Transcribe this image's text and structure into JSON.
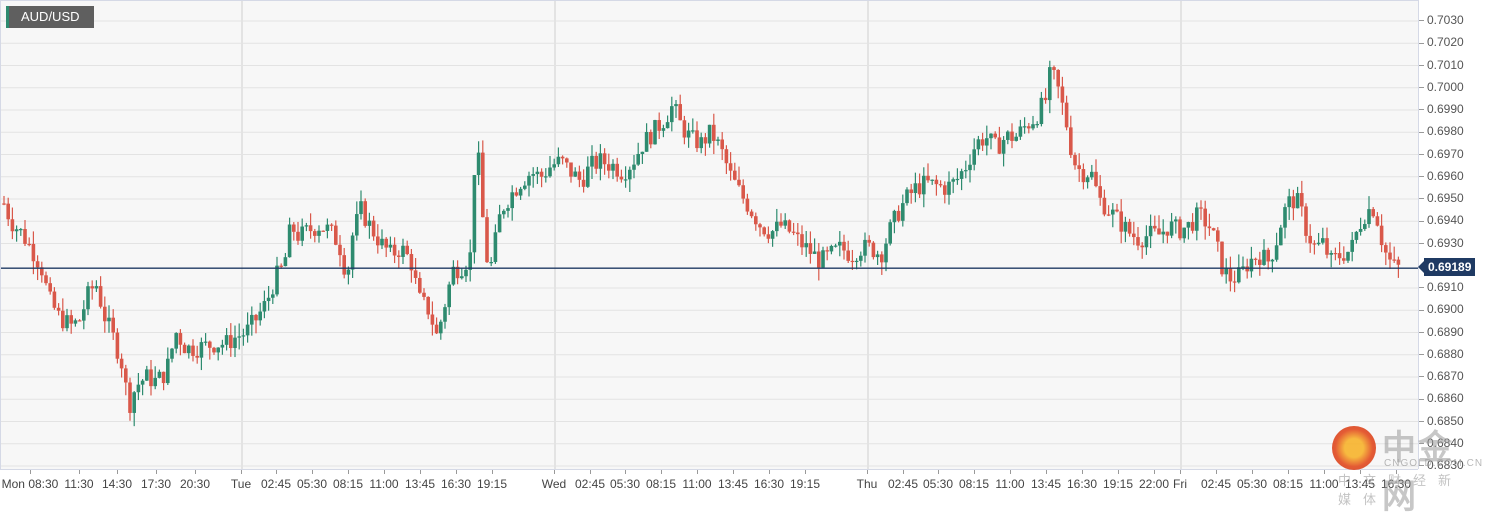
{
  "window": {
    "symbol": "AUD/USD"
  },
  "current_price": {
    "value": "0.69189",
    "numeric": 0.69189
  },
  "colors": {
    "up": "#2e8b6f",
    "down": "#d9584a",
    "price_line": "#1f3a63",
    "grid": "#e3e3e3",
    "background": "#f7f7f7"
  },
  "watermark": {
    "brand": "中金网",
    "sub": "CNGOLD.COM.CN",
    "tagline": "中文财经新媒体"
  },
  "chart_data": {
    "type": "candlestick",
    "title": "AUD/USD",
    "xlabel": "",
    "ylabel": "",
    "ylim": [
      0.683,
      0.7035
    ],
    "grid": true,
    "legend_position": "none",
    "y_ticks": [
      "0.7030",
      "0.7020",
      "0.7010",
      "0.7000",
      "0.6990",
      "0.6980",
      "0.6970",
      "0.6960",
      "0.6950",
      "0.6940",
      "0.6930",
      "0.6910",
      "0.6900",
      "0.6890",
      "0.6880",
      "0.6870",
      "0.6860",
      "0.6850",
      "0.6840",
      "0.6830"
    ],
    "x_ticks": [
      {
        "label": "Mon 08:30",
        "x": 30
      },
      {
        "label": "11:30",
        "x": 79
      },
      {
        "label": "14:30",
        "x": 117
      },
      {
        "label": "17:30",
        "x": 156
      },
      {
        "label": "20:30",
        "x": 195
      },
      {
        "label": "Tue",
        "x": 241
      },
      {
        "label": "02:45",
        "x": 276
      },
      {
        "label": "05:30",
        "x": 312
      },
      {
        "label": "08:15",
        "x": 348
      },
      {
        "label": "11:00",
        "x": 384
      },
      {
        "label": "13:45",
        "x": 420
      },
      {
        "label": "16:30",
        "x": 456
      },
      {
        "label": "19:15",
        "x": 492
      },
      {
        "label": "Wed",
        "x": 554
      },
      {
        "label": "02:45",
        "x": 590
      },
      {
        "label": "05:30",
        "x": 625
      },
      {
        "label": "08:15",
        "x": 661
      },
      {
        "label": "11:00",
        "x": 697
      },
      {
        "label": "13:45",
        "x": 733
      },
      {
        "label": "16:30",
        "x": 769
      },
      {
        "label": "19:15",
        "x": 805
      },
      {
        "label": "Thu",
        "x": 867
      },
      {
        "label": "02:45",
        "x": 903
      },
      {
        "label": "05:30",
        "x": 938
      },
      {
        "label": "08:15",
        "x": 974
      },
      {
        "label": "11:00",
        "x": 1010
      },
      {
        "label": "13:45",
        "x": 1046
      },
      {
        "label": "16:30",
        "x": 1082
      },
      {
        "label": "19:15",
        "x": 1118
      },
      {
        "label": "22:00",
        "x": 1154
      },
      {
        "label": "Fri",
        "x": 1180
      },
      {
        "label": "02:45",
        "x": 1216
      },
      {
        "label": "05:30",
        "x": 1252
      },
      {
        "label": "08:15",
        "x": 1288
      },
      {
        "label": "11:00",
        "x": 1324
      },
      {
        "label": "13:45",
        "x": 1360
      },
      {
        "label": "16:30",
        "x": 1396
      }
    ],
    "day_separators_x": [
      241,
      554,
      867,
      1180
    ],
    "price_path": [
      [
        3,
        0.6948
      ],
      [
        10,
        0.694
      ],
      [
        20,
        0.6935
      ],
      [
        30,
        0.6928
      ],
      [
        40,
        0.692
      ],
      [
        48,
        0.6905
      ],
      [
        58,
        0.6897
      ],
      [
        70,
        0.6893
      ],
      [
        78,
        0.6895
      ],
      [
        88,
        0.6908
      ],
      [
        95,
        0.6912
      ],
      [
        103,
        0.6898
      ],
      [
        112,
        0.6888
      ],
      [
        120,
        0.6878
      ],
      [
        128,
        0.6857
      ],
      [
        135,
        0.6866
      ],
      [
        145,
        0.687
      ],
      [
        155,
        0.6868
      ],
      [
        165,
        0.6872
      ],
      [
        175,
        0.689
      ],
      [
        185,
        0.6883
      ],
      [
        195,
        0.6883
      ],
      [
        205,
        0.6884
      ],
      [
        215,
        0.6885
      ],
      [
        225,
        0.6885
      ],
      [
        235,
        0.6888
      ],
      [
        245,
        0.689
      ],
      [
        255,
        0.6896
      ],
      [
        265,
        0.6903
      ],
      [
        275,
        0.6915
      ],
      [
        283,
        0.692
      ],
      [
        290,
        0.6938
      ],
      [
        298,
        0.6933
      ],
      [
        308,
        0.6936
      ],
      [
        318,
        0.6938
      ],
      [
        328,
        0.6936
      ],
      [
        338,
        0.693
      ],
      [
        346,
        0.6915
      ],
      [
        352,
        0.6935
      ],
      [
        360,
        0.6945
      ],
      [
        370,
        0.6937
      ],
      [
        380,
        0.693
      ],
      [
        390,
        0.6925
      ],
      [
        400,
        0.6928
      ],
      [
        410,
        0.6922
      ],
      [
        418,
        0.6905
      ],
      [
        428,
        0.69
      ],
      [
        436,
        0.6888
      ],
      [
        445,
        0.6905
      ],
      [
        452,
        0.6918
      ],
      [
        462,
        0.692
      ],
      [
        470,
        0.6925
      ],
      [
        475,
        0.6982
      ],
      [
        482,
        0.694
      ],
      [
        488,
        0.6915
      ],
      [
        494,
        0.693
      ],
      [
        500,
        0.6945
      ],
      [
        510,
        0.6952
      ],
      [
        520,
        0.6958
      ],
      [
        530,
        0.6962
      ],
      [
        540,
        0.696
      ],
      [
        550,
        0.6965
      ],
      [
        560,
        0.6967
      ],
      [
        570,
        0.6962
      ],
      [
        580,
        0.6958
      ],
      [
        590,
        0.6965
      ],
      [
        600,
        0.6967
      ],
      [
        612,
        0.6965
      ],
      [
        622,
        0.6962
      ],
      [
        632,
        0.6967
      ],
      [
        642,
        0.6975
      ],
      [
        652,
        0.698
      ],
      [
        662,
        0.6985
      ],
      [
        672,
        0.6992
      ],
      [
        680,
        0.6983
      ],
      [
        690,
        0.6977
      ],
      [
        700,
        0.6975
      ],
      [
        710,
        0.698
      ],
      [
        720,
        0.6972
      ],
      [
        730,
        0.696
      ],
      [
        740,
        0.6952
      ],
      [
        750,
        0.6945
      ],
      [
        760,
        0.6938
      ],
      [
        770,
        0.6935
      ],
      [
        780,
        0.6938
      ],
      [
        790,
        0.6935
      ],
      [
        800,
        0.693
      ],
      [
        810,
        0.6926
      ],
      [
        820,
        0.6922
      ],
      [
        830,
        0.6925
      ],
      [
        840,
        0.6928
      ],
      [
        850,
        0.6925
      ],
      [
        860,
        0.6928
      ],
      [
        870,
        0.6928
      ],
      [
        880,
        0.6925
      ],
      [
        888,
        0.6935
      ],
      [
        895,
        0.6942
      ],
      [
        905,
        0.695
      ],
      [
        915,
        0.6955
      ],
      [
        925,
        0.6957
      ],
      [
        935,
        0.6956
      ],
      [
        945,
        0.6955
      ],
      [
        955,
        0.6958
      ],
      [
        965,
        0.6965
      ],
      [
        975,
        0.6975
      ],
      [
        985,
        0.6978
      ],
      [
        995,
        0.6973
      ],
      [
        1005,
        0.6978
      ],
      [
        1015,
        0.6978
      ],
      [
        1025,
        0.6983
      ],
      [
        1035,
        0.6987
      ],
      [
        1045,
        0.6995
      ],
      [
        1050,
        0.7008
      ],
      [
        1058,
        0.6998
      ],
      [
        1065,
        0.6985
      ],
      [
        1072,
        0.6968
      ],
      [
        1080,
        0.6962
      ],
      [
        1090,
        0.6962
      ],
      [
        1098,
        0.695
      ],
      [
        1108,
        0.6945
      ],
      [
        1118,
        0.694
      ],
      [
        1128,
        0.6935
      ],
      [
        1138,
        0.6932
      ],
      [
        1148,
        0.6934
      ],
      [
        1158,
        0.6934
      ],
      [
        1168,
        0.6938
      ],
      [
        1178,
        0.6936
      ],
      [
        1188,
        0.6938
      ],
      [
        1198,
        0.6943
      ],
      [
        1208,
        0.6938
      ],
      [
        1215,
        0.693
      ],
      [
        1222,
        0.6918
      ],
      [
        1230,
        0.6914
      ],
      [
        1240,
        0.6916
      ],
      [
        1248,
        0.6922
      ],
      [
        1258,
        0.6925
      ],
      [
        1268,
        0.6922
      ],
      [
        1276,
        0.6932
      ],
      [
        1282,
        0.6943
      ],
      [
        1290,
        0.695
      ],
      [
        1298,
        0.6948
      ],
      [
        1306,
        0.6935
      ],
      [
        1314,
        0.6928
      ],
      [
        1322,
        0.693
      ],
      [
        1330,
        0.6922
      ],
      [
        1340,
        0.6925
      ],
      [
        1350,
        0.6927
      ],
      [
        1358,
        0.6938
      ],
      [
        1366,
        0.6945
      ],
      [
        1374,
        0.6946
      ],
      [
        1380,
        0.6933
      ],
      [
        1386,
        0.6924
      ],
      [
        1392,
        0.692
      ],
      [
        1398,
        0.6919
      ]
    ]
  }
}
